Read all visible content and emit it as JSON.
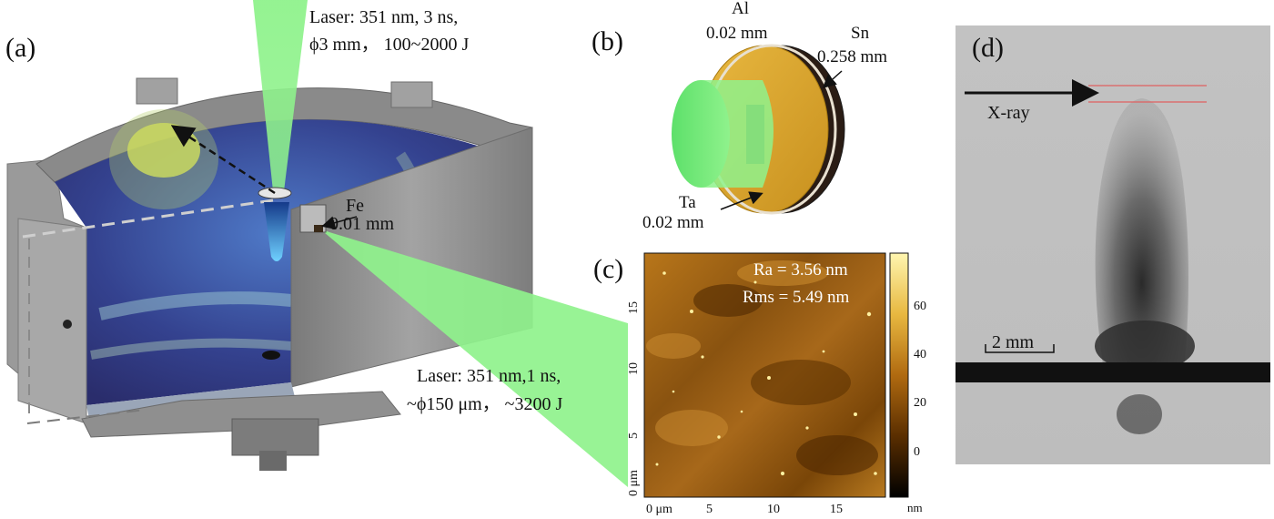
{
  "panels": {
    "a": {
      "label": "(a)",
      "laser_top_line1": "Laser: 351 nm, 3 ns,",
      "laser_top_line2": "ϕ3 mm， 100~2000 J",
      "fe_material": "Fe",
      "fe_thickness": "0.01 mm",
      "laser_side_line1": "Laser: 351 nm,1 ns,",
      "laser_side_line2": "~ϕ150 μm， ~3200 J"
    },
    "b": {
      "label": "(b)",
      "al_material": "Al",
      "al_thickness": "0.02 mm",
      "sn_material": "Sn",
      "sn_thickness": "0.258 mm",
      "ta_material": "Ta",
      "ta_thickness": "0.02 mm"
    },
    "c": {
      "label": "(c)",
      "ra_text": "Ra = 3.56 nm",
      "rms_text": "Rms = 5.49 nm",
      "x_ticks": [
        "0 μm",
        "5",
        "10",
        "15"
      ],
      "y_ticks": [
        "0 μm",
        "5",
        "10",
        "15"
      ],
      "colorbar_ticks": [
        "60",
        "40",
        "20",
        "0"
      ],
      "colorbar_unit": "nm"
    },
    "d": {
      "label": "(d)",
      "xray_label": "X-ray",
      "scale_label": "2 mm"
    }
  },
  "colors": {
    "laser_green": "#8ff28c",
    "chamber_gray": "#8c8c8c",
    "afm_dark": "#3a1e00",
    "afm_light": "#e8c050",
    "xray_line": "#e06060"
  }
}
